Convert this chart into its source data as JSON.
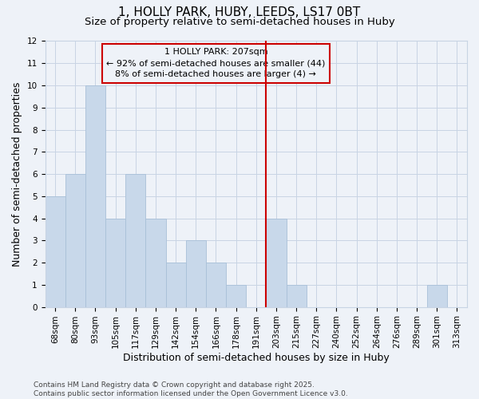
{
  "title": "1, HOLLY PARK, HUBY, LEEDS, LS17 0BT",
  "subtitle": "Size of property relative to semi-detached houses in Huby",
  "xlabel": "Distribution of semi-detached houses by size in Huby",
  "ylabel": "Number of semi-detached properties",
  "categories": [
    "68sqm",
    "80sqm",
    "93sqm",
    "105sqm",
    "117sqm",
    "129sqm",
    "142sqm",
    "154sqm",
    "166sqm",
    "178sqm",
    "191sqm",
    "203sqm",
    "215sqm",
    "227sqm",
    "240sqm",
    "252sqm",
    "264sqm",
    "276sqm",
    "289sqm",
    "301sqm",
    "313sqm"
  ],
  "values": [
    5,
    6,
    10,
    4,
    6,
    4,
    2,
    3,
    2,
    1,
    0,
    4,
    1,
    0,
    0,
    0,
    0,
    0,
    0,
    1,
    0
  ],
  "bar_color": "#c8d8ea",
  "bar_edge_color": "#a8c0d8",
  "vline_x": 10.5,
  "vline_color": "#cc0000",
  "annotation_text": "1 HOLLY PARK: 207sqm\n← 92% of semi-detached houses are smaller (44)\n8% of semi-detached houses are larger (4) →",
  "ylim": [
    0,
    12
  ],
  "yticks": [
    0,
    1,
    2,
    3,
    4,
    5,
    6,
    7,
    8,
    9,
    10,
    11,
    12
  ],
  "grid_color": "#c8d4e4",
  "bg_color": "#eef2f8",
  "footer": "Contains HM Land Registry data © Crown copyright and database right 2025.\nContains public sector information licensed under the Open Government Licence v3.0.",
  "title_fontsize": 11,
  "subtitle_fontsize": 9.5,
  "xlabel_fontsize": 9,
  "ylabel_fontsize": 9,
  "tick_fontsize": 7.5,
  "annotation_fontsize": 8,
  "footer_fontsize": 6.5
}
